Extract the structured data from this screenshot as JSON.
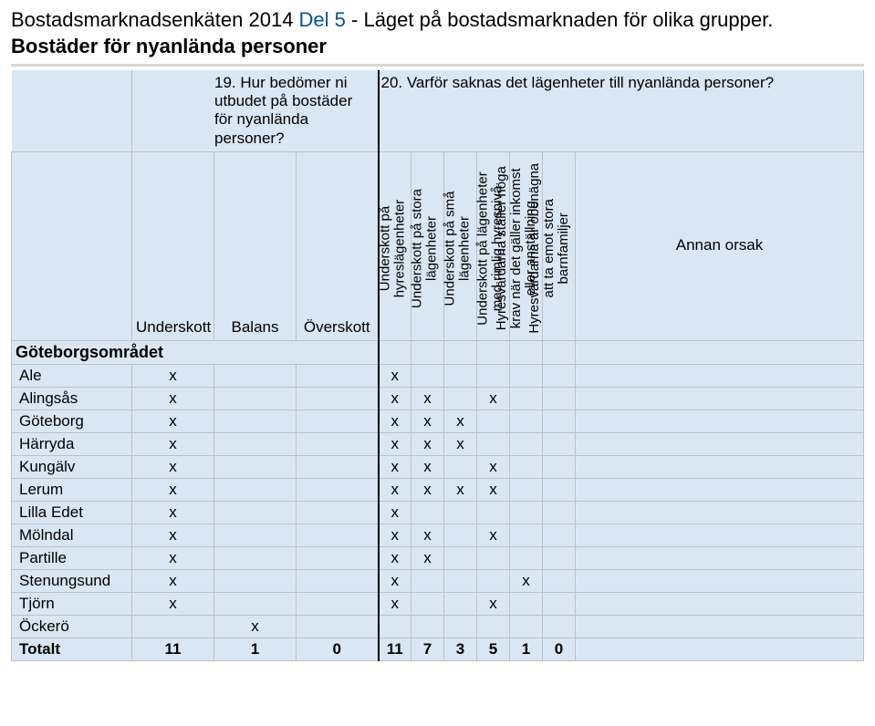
{
  "page": {
    "title_part1": "Bostadsmarknadsenkäten 2014 ",
    "title_part2": "Del 5",
    "title_part3": " - Läget på bostadsmarknaden för olika grupper. ",
    "subtitle": "Bostäder för nyanlända personer"
  },
  "questions": {
    "q19": "19. Hur bedömer ni utbudet på bostäder för nyanlända personer?",
    "q20": "20. Varför saknas det lägenheter till nyanlända personer?"
  },
  "columns": {
    "lbl_col": "",
    "q19_cols": [
      "Underskott",
      "Balans",
      "Överskott"
    ],
    "q20_rot": [
      "Underskott på hyreslägenheter",
      "Underskott på stora lägenheter",
      "Underskott på små lägenheter",
      "Underskott på lägenheter med rimlig hyresnivå",
      "Hyresvärdarna ställer höga krav när det gäller inkomst eller anställning",
      "Hyresvärdarna är obenägna att ta emot stora barnfamiljer"
    ],
    "annan": "Annan orsak"
  },
  "group_label": "Göteborgsområdet",
  "rows": [
    {
      "name": "Ale",
      "c": [
        "x",
        "",
        "",
        "x",
        "",
        "",
        "",
        "",
        "",
        ""
      ]
    },
    {
      "name": "Alingsås",
      "c": [
        "x",
        "",
        "",
        "x",
        "x",
        "",
        "x",
        "",
        "",
        ""
      ]
    },
    {
      "name": "Göteborg",
      "c": [
        "x",
        "",
        "",
        "x",
        "x",
        "x",
        "",
        "",
        "",
        ""
      ]
    },
    {
      "name": "Härryda",
      "c": [
        "x",
        "",
        "",
        "x",
        "x",
        "x",
        "",
        "",
        "",
        ""
      ]
    },
    {
      "name": "Kungälv",
      "c": [
        "x",
        "",
        "",
        "x",
        "x",
        "",
        "x",
        "",
        "",
        ""
      ]
    },
    {
      "name": "Lerum",
      "c": [
        "x",
        "",
        "",
        "x",
        "x",
        "x",
        "x",
        "",
        "",
        ""
      ]
    },
    {
      "name": "Lilla Edet",
      "c": [
        "x",
        "",
        "",
        "x",
        "",
        "",
        "",
        "",
        "",
        ""
      ]
    },
    {
      "name": "Mölndal",
      "c": [
        "x",
        "",
        "",
        "x",
        "x",
        "",
        "x",
        "",
        "",
        ""
      ]
    },
    {
      "name": "Partille",
      "c": [
        "x",
        "",
        "",
        "x",
        "x",
        "",
        "",
        "",
        "",
        ""
      ]
    },
    {
      "name": "Stenungsund",
      "c": [
        "x",
        "",
        "",
        "x",
        "",
        "",
        "",
        "x",
        "",
        ""
      ]
    },
    {
      "name": "Tjörn",
      "c": [
        "x",
        "",
        "",
        "x",
        "",
        "",
        "x",
        "",
        "",
        ""
      ]
    },
    {
      "name": "Öckerö",
      "c": [
        "",
        "x",
        "",
        "",
        "",
        "",
        "",
        "",
        "",
        ""
      ]
    }
  ],
  "total_label": "Totalt",
  "totals": [
    "11",
    "1",
    "0",
    "11",
    "7",
    "3",
    "5",
    "1",
    "0",
    ""
  ],
  "style": {
    "header_bg": "#d9e7f5",
    "line_color": "#bfbfbf",
    "accent": "#0b5394",
    "vthick": "#000000"
  }
}
